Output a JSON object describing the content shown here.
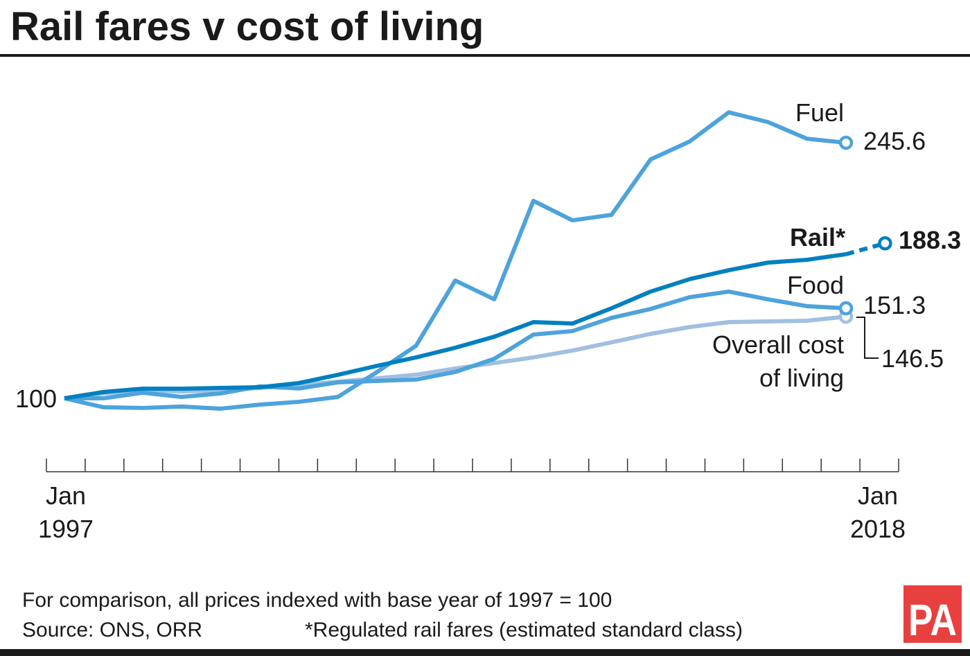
{
  "title": "Rail fares v cost of living",
  "footer": {
    "note": "For comparison, all prices indexed with base year of 1997 = 100",
    "source": "Source: ONS, ORR",
    "footnote": "*Regulated rail fares (estimated standard class)"
  },
  "logo_text": "PA",
  "colors": {
    "fuel": "#4da3dc",
    "food": "#4da3dc",
    "rail": "#0080c0",
    "overall": "#a2bfe0",
    "logo": "#e8403f"
  },
  "chart_data": {
    "type": "line",
    "title": "Rail fares v cost of living",
    "x_start_label": [
      "Jan",
      "1997"
    ],
    "x_end_label": [
      "Jan",
      "2018"
    ],
    "base_label": "100",
    "xlim": [
      1997,
      2018
    ],
    "grid": false,
    "series": [
      {
        "name": "Fuel",
        "end_label": "245.6",
        "x": [
          1997,
          1998,
          1999,
          2000,
          2001,
          2002,
          2003,
          2004,
          2005,
          2006,
          2007,
          2008,
          2009,
          2010,
          2011,
          2012,
          2013,
          2014,
          2015,
          2016,
          2017
        ],
        "values": [
          100,
          94.9,
          94.5,
          95.3,
          94.1,
          96.4,
          98.0,
          100.8,
          115.0,
          130.0,
          167.1,
          156.4,
          212.5,
          201.4,
          204.5,
          236.1,
          246.3,
          262.9,
          257.4,
          247.9,
          245.6
        ]
      },
      {
        "name": "Rail*",
        "end_label": "188.3",
        "projected_from": 2017,
        "x": [
          1997,
          1998,
          1999,
          2000,
          2001,
          2002,
          2003,
          2004,
          2005,
          2006,
          2007,
          2008,
          2009,
          2010,
          2011,
          2012,
          2013,
          2014,
          2015,
          2016,
          2017,
          2018
        ],
        "values": [
          100,
          103.6,
          105.5,
          105.5,
          105.9,
          106.3,
          108.7,
          113.4,
          118.5,
          123.3,
          128.8,
          135.1,
          143.4,
          142.6,
          151.3,
          160.8,
          167.9,
          173.0,
          177.3,
          178.9,
          182.1,
          188.3
        ]
      },
      {
        "name": "Food",
        "end_label": "151.3",
        "x": [
          1997,
          1998,
          1999,
          2000,
          2001,
          2002,
          2003,
          2004,
          2005,
          2006,
          2007,
          2008,
          2009,
          2010,
          2011,
          2012,
          2013,
          2014,
          2015,
          2016,
          2017
        ],
        "values": [
          100,
          100,
          103.2,
          100.8,
          102.8,
          106.8,
          105.6,
          109.1,
          109.9,
          110.7,
          115.0,
          122.5,
          136.3,
          138.3,
          145.8,
          150.9,
          157.6,
          160.8,
          156.4,
          152.5,
          151.3
        ]
      },
      {
        "name": "Overall cost of living",
        "name_lines": [
          "Overall cost",
          "of living"
        ],
        "end_label": "146.5",
        "x": [
          1997,
          1998,
          1999,
          2000,
          2001,
          2002,
          2003,
          2004,
          2005,
          2006,
          2007,
          2008,
          2009,
          2010,
          2011,
          2012,
          2013,
          2014,
          2015,
          2016,
          2017
        ],
        "values": [
          100,
          102.8,
          104.7,
          103.9,
          104.7,
          105.9,
          107.5,
          109.5,
          111.4,
          113.4,
          117.0,
          120.1,
          123.3,
          127.2,
          131.9,
          136.7,
          140.6,
          143.4,
          143.8,
          144.2,
          146.5
        ]
      }
    ]
  }
}
